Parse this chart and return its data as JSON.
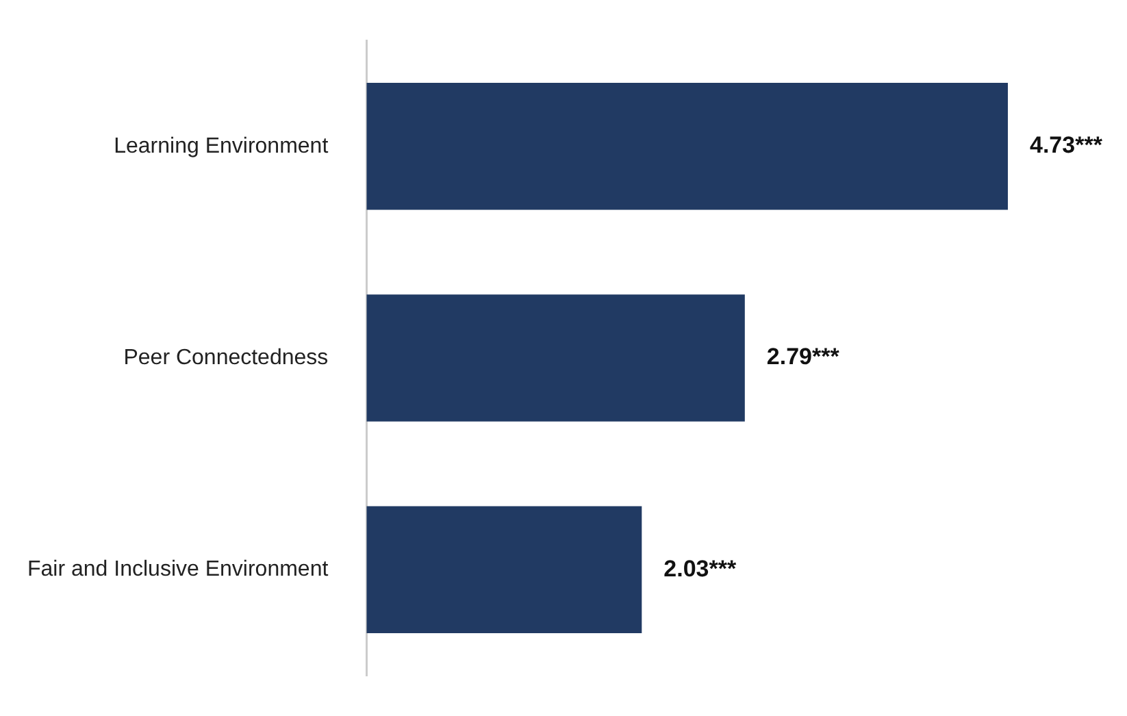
{
  "chart_data": {
    "type": "bar",
    "orientation": "horizontal",
    "categories": [
      "Learning Environment",
      "Peer Connectedness",
      "Fair and Inclusive Environment"
    ],
    "values": [
      4.73,
      2.79,
      2.03
    ],
    "color": "#213a63",
    "value_labels": [
      "4.73***",
      "2.79***",
      "2.03***"
    ],
    "grid": false,
    "legend": false,
    "tick_labels": "y"
  }
}
